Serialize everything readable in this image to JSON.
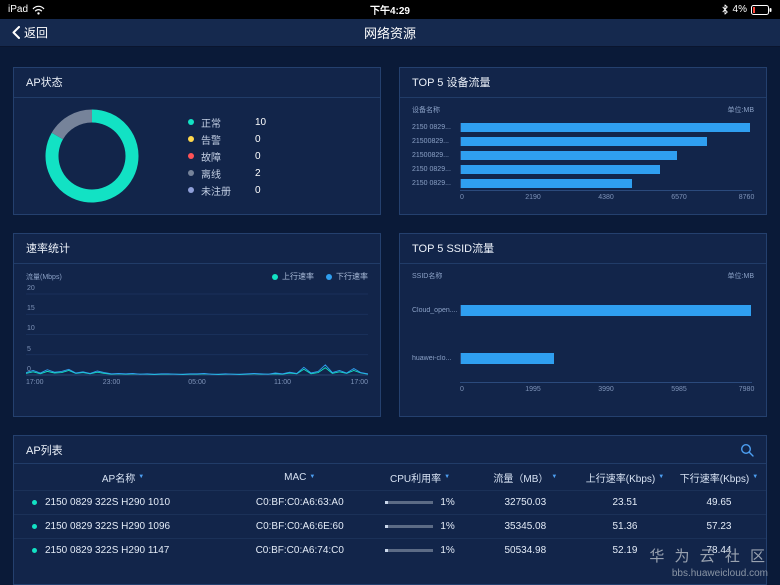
{
  "status_bar": {
    "device": "iPad",
    "time": "下午4:29",
    "battery_percent": "4%"
  },
  "nav": {
    "back_label": "返回",
    "title": "网络资源"
  },
  "ap_status_card": {
    "title": "AP状态"
  },
  "device_traffic_card": {
    "title": "TOP 5 设备流量"
  },
  "rate_card": {
    "title": "速率统计"
  },
  "ssid_card": {
    "title": "TOP 5 SSID流量"
  },
  "chart_data": [
    {
      "id": "ap_status_donut",
      "type": "pie",
      "title": "AP状态",
      "labels": [
        "正常",
        "告警",
        "故障",
        "离线",
        "未注册"
      ],
      "values": [
        10,
        0,
        0,
        2,
        0
      ],
      "colors": [
        "#12e2c4",
        "#ffd84d",
        "#ff5257",
        "#76839a",
        "#8f9fd9"
      ]
    },
    {
      "id": "device_traffic_bar",
      "type": "bar",
      "orientation": "horizontal",
      "title": "TOP 5 设备流量",
      "axis_title": "设备名称",
      "unit": "单位:MB",
      "categories": [
        "2150 0829...",
        "21500829...",
        "21500829...",
        "2150 0829...",
        "2150 0829..."
      ],
      "values": [
        8700,
        7400,
        6500,
        6000,
        5150
      ],
      "xticks": [
        0,
        2190,
        4380,
        6570,
        8760
      ],
      "xlim": [
        0,
        8760
      ],
      "bar_color": "#2f9ff0"
    },
    {
      "id": "rate_line",
      "type": "line",
      "title": "速率统计",
      "ylabel": "流量(Mbps)",
      "yticks": [
        0,
        5,
        10,
        15,
        20
      ],
      "ylim": [
        0,
        20
      ],
      "xticks": [
        "17:00",
        "23:00",
        "05:00",
        "11:00",
        "17:00"
      ],
      "legend_position": "top-right",
      "grid": true,
      "series": [
        {
          "name": "上行速率",
          "color": "#12e2c4",
          "values": [
            0.4,
            0.8,
            0.3,
            0.9,
            0.5,
            0.6,
            1.1,
            0.4,
            0.6,
            0.3,
            0.7,
            0.4,
            0.2,
            0.3,
            0.2,
            0.3,
            0.2,
            0.2,
            0.1,
            0.2,
            0.2,
            0.2,
            0.1,
            0.2,
            0.2,
            0.3,
            0.2,
            0.1,
            0.2,
            0.2,
            0.1,
            0.2,
            0.3,
            0.2,
            0.2,
            0.3,
            0.2,
            0.5,
            0.3,
            1.4,
            0.3,
            0.6,
            1.8,
            0.4,
            0.8,
            0.4,
            1.1,
            0.5,
            0.2
          ]
        },
        {
          "name": "下行速率",
          "color": "#2f9ff0",
          "values": [
            0.6,
            1.1,
            0.5,
            1.3,
            0.7,
            0.9,
            1.4,
            0.5,
            0.8,
            0.4,
            1.0,
            0.6,
            0.3,
            0.4,
            0.3,
            0.4,
            0.2,
            0.3,
            0.2,
            0.3,
            0.3,
            0.2,
            0.2,
            0.3,
            0.3,
            0.4,
            0.2,
            0.2,
            0.3,
            0.2,
            0.2,
            0.3,
            0.4,
            0.3,
            0.2,
            0.5,
            0.3,
            0.7,
            0.4,
            1.9,
            0.5,
            0.9,
            2.5,
            0.6,
            1.1,
            0.5,
            1.6,
            0.6,
            0.3
          ]
        }
      ]
    },
    {
      "id": "ssid_traffic_bar",
      "type": "bar",
      "orientation": "horizontal",
      "title": "TOP 5 SSID流量",
      "axis_title": "SSID名称",
      "unit": "单位:MB",
      "categories": [
        "Cloud_open....",
        "huawei-clo..."
      ],
      "values": [
        7950,
        2550
      ],
      "xticks": [
        0,
        1995,
        3990,
        5985,
        7980
      ],
      "xlim": [
        0,
        7980
      ],
      "bar_color": "#2f9ff0"
    }
  ],
  "ap_list": {
    "title": "AP列表",
    "columns": [
      "AP名称",
      "MAC",
      "CPU利用率",
      "流量（MB）",
      "上行速率(Kbps)",
      "下行速率(Kbps)"
    ],
    "rows": [
      {
        "name": "2150 0829 322S H290 1010",
        "mac": "C0:BF:C0:A6:63:A0",
        "cpu": "1%",
        "cpu_pct": 6,
        "traffic": "32750.03",
        "up": "23.51",
        "down": "49.65"
      },
      {
        "name": "2150 0829 322S H290 1096",
        "mac": "C0:BF:C0:A6:6E:60",
        "cpu": "1%",
        "cpu_pct": 6,
        "traffic": "35345.08",
        "up": "51.36",
        "down": "57.23"
      },
      {
        "name": "2150 0829 322S H290 1147",
        "mac": "C0:BF:C0:A6:74:C0",
        "cpu": "1%",
        "cpu_pct": 6,
        "traffic": "50534.98",
        "up": "52.19",
        "down": "78.44"
      }
    ]
  },
  "watermark": {
    "line1": "华 为 云 社 区",
    "line2": "bbs.huaweicloud.com"
  }
}
